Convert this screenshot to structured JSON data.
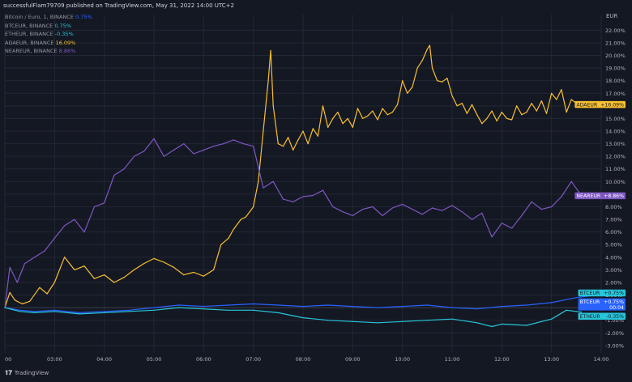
{
  "header": {
    "publisher": "successfulFlam79709 published on TradingView.com, May 31, 2022 14:00 UTC+2"
  },
  "legend": [
    {
      "name": "Bitcoin / Euro, 1, BINANCE",
      "value": "0.75%",
      "color": "#2962ff"
    },
    {
      "name": "BTCEUR, BINANCE",
      "value": "0.75%",
      "color": "#26c6da"
    },
    {
      "name": "ETHEUR, BINANCE",
      "value": "-0.35%",
      "color": "#26c6da"
    },
    {
      "name": "ADAEUR, BINANCE",
      "value": "16.09%",
      "color": "#f9c02e"
    },
    {
      "name": "NEAREUR, BINANCE",
      "value": "8.86%",
      "color": "#7e57c2"
    }
  ],
  "currency": "EUR",
  "branding": "TradingView",
  "colors": {
    "background": "#141823",
    "grid": "#222736",
    "axis_text": "#b2b5be",
    "ada": "#f9c02e",
    "near": "#7e57c2",
    "btc": "#2962ff",
    "eth": "#26c6da"
  },
  "chart_data": {
    "type": "line",
    "title": "",
    "xlabel": "",
    "ylabel": "",
    "x_ticks": [
      "00",
      "03:00",
      "04:00",
      "05:00",
      "06:00",
      "07:00",
      "08:00",
      "09:00",
      "10:00",
      "11:00",
      "12:00",
      "13:00",
      "14:00"
    ],
    "y_ticks": [
      "-3.00%",
      "-2.00%",
      "-1.00%",
      "0.00%",
      "1.00%",
      "2.00%",
      "3.00%",
      "4.00%",
      "5.00%",
      "6.00%",
      "7.00%",
      "8.00%",
      "9.00%",
      "10.00%",
      "11.00%",
      "12.00%",
      "13.00%",
      "14.00%",
      "15.00%",
      "16.00%",
      "17.00%",
      "18.00%",
      "19.00%",
      "20.00%",
      "21.00%",
      "22.00%"
    ],
    "ylim": [
      -3.2,
      22.6
    ],
    "xlim": [
      2.0,
      14.0
    ],
    "grid": true,
    "log_scale": false,
    "series": [
      {
        "name": "ADAEUR",
        "color": "#f9c02e",
        "x": [
          2.0,
          2.1,
          2.2,
          2.35,
          2.5,
          2.7,
          2.85,
          3.0,
          3.2,
          3.4,
          3.6,
          3.8,
          4.0,
          4.2,
          4.4,
          4.6,
          4.8,
          5.0,
          5.2,
          5.4,
          5.6,
          5.8,
          6.0,
          6.2,
          6.35,
          6.5,
          6.6,
          6.75,
          6.85,
          7.0,
          7.1,
          7.2,
          7.3,
          7.35,
          7.4,
          7.5,
          7.6,
          7.7,
          7.8,
          7.9,
          8.0,
          8.1,
          8.2,
          8.3,
          8.4,
          8.5,
          8.6,
          8.7,
          8.8,
          8.9,
          9.0,
          9.1,
          9.2,
          9.3,
          9.4,
          9.5,
          9.6,
          9.7,
          9.8,
          9.9,
          10.0,
          10.1,
          10.2,
          10.3,
          10.4,
          10.5,
          10.55,
          10.6,
          10.7,
          10.8,
          10.9,
          11.0,
          11.1,
          11.2,
          11.3,
          11.4,
          11.5,
          11.6,
          11.7,
          11.8,
          11.9,
          12.0,
          12.1,
          12.2,
          12.3,
          12.4,
          12.5,
          12.6,
          12.7,
          12.8,
          12.9,
          13.0,
          13.1,
          13.2,
          13.3,
          13.4,
          13.5,
          13.6
        ],
        "values": [
          0.0,
          1.2,
          0.6,
          0.3,
          0.5,
          1.6,
          1.1,
          2.0,
          4.0,
          3.0,
          3.3,
          2.3,
          2.6,
          2.0,
          2.4,
          3.0,
          3.5,
          3.9,
          3.6,
          3.2,
          2.6,
          2.8,
          2.5,
          3.0,
          5.0,
          5.5,
          6.2,
          7.0,
          7.2,
          8.0,
          10.0,
          14.0,
          18.0,
          20.4,
          16.0,
          13.0,
          12.8,
          13.5,
          12.5,
          13.3,
          14.0,
          13.0,
          14.2,
          13.6,
          16.0,
          14.3,
          15.0,
          15.5,
          14.6,
          15.0,
          14.3,
          15.8,
          15.0,
          15.2,
          15.6,
          14.9,
          15.8,
          15.3,
          15.5,
          16.1,
          18.0,
          17.0,
          17.5,
          19.0,
          19.6,
          20.5,
          20.8,
          19.0,
          18.0,
          17.9,
          18.2,
          16.8,
          16.0,
          16.2,
          15.4,
          16.1,
          15.3,
          14.6,
          15.0,
          15.6,
          14.8,
          15.5,
          15.0,
          14.9,
          16.0,
          15.3,
          15.5,
          16.2,
          15.6,
          16.4,
          15.4,
          17.0,
          16.5,
          17.3,
          15.5,
          16.5,
          16.2,
          16.1
        ]
      },
      {
        "name": "NEAREUR",
        "color": "#7e57c2",
        "x": [
          2.0,
          2.1,
          2.25,
          2.4,
          2.6,
          2.8,
          3.0,
          3.2,
          3.4,
          3.6,
          3.8,
          4.0,
          4.2,
          4.4,
          4.6,
          4.8,
          5.0,
          5.2,
          5.4,
          5.6,
          5.8,
          6.0,
          6.2,
          6.4,
          6.6,
          6.8,
          7.0,
          7.2,
          7.4,
          7.6,
          7.8,
          8.0,
          8.2,
          8.4,
          8.6,
          8.8,
          9.0,
          9.2,
          9.4,
          9.6,
          9.8,
          10.0,
          10.2,
          10.4,
          10.6,
          10.8,
          11.0,
          11.2,
          11.4,
          11.6,
          11.8,
          12.0,
          12.2,
          12.4,
          12.6,
          12.8,
          13.0,
          13.2,
          13.4,
          13.6
        ],
        "values": [
          0.0,
          3.2,
          2.0,
          3.5,
          4.0,
          4.5,
          5.5,
          6.5,
          7.0,
          6.0,
          8.0,
          8.3,
          10.5,
          11.0,
          12.0,
          12.4,
          13.4,
          12.0,
          12.5,
          13.0,
          12.2,
          12.5,
          12.8,
          13.0,
          13.3,
          13.0,
          12.8,
          9.5,
          10.0,
          8.6,
          8.4,
          8.8,
          8.9,
          9.3,
          8.0,
          7.6,
          7.3,
          7.8,
          8.0,
          7.3,
          7.9,
          8.2,
          7.8,
          7.4,
          7.9,
          7.7,
          8.1,
          7.6,
          7.0,
          7.5,
          5.6,
          6.7,
          6.3,
          7.3,
          8.4,
          7.8,
          8.0,
          8.8,
          10.0,
          8.9
        ]
      },
      {
        "name": "BTCEUR",
        "color": "#2962ff",
        "x": [
          2.0,
          2.3,
          2.6,
          3.0,
          3.5,
          4.0,
          4.5,
          5.0,
          5.5,
          6.0,
          6.5,
          7.0,
          7.5,
          8.0,
          8.5,
          9.0,
          9.5,
          10.0,
          10.5,
          11.0,
          11.5,
          12.0,
          12.5,
          13.0,
          13.5,
          13.9
        ],
        "values": [
          0.0,
          -0.2,
          -0.3,
          -0.2,
          -0.4,
          -0.3,
          -0.2,
          0.0,
          0.2,
          0.1,
          0.2,
          0.3,
          0.2,
          0.1,
          0.2,
          0.1,
          0.0,
          0.1,
          0.2,
          0.0,
          -0.1,
          0.1,
          0.2,
          0.4,
          0.8,
          1.0
        ]
      },
      {
        "name": "ETHEUR",
        "color": "#26c6da",
        "x": [
          2.0,
          2.3,
          2.6,
          3.0,
          3.5,
          4.0,
          4.5,
          5.0,
          5.5,
          6.0,
          6.5,
          7.0,
          7.5,
          8.0,
          8.5,
          9.0,
          9.5,
          10.0,
          10.5,
          11.0,
          11.5,
          11.8,
          12.0,
          12.5,
          13.0,
          13.3,
          13.6
        ],
        "values": [
          0.0,
          -0.3,
          -0.4,
          -0.3,
          -0.5,
          -0.4,
          -0.3,
          -0.2,
          0.0,
          -0.1,
          -0.2,
          -0.2,
          -0.4,
          -0.8,
          -1.0,
          -1.1,
          -1.2,
          -1.1,
          -1.0,
          -0.9,
          -1.2,
          -1.5,
          -1.3,
          -1.4,
          -0.9,
          -0.2,
          -0.35
        ]
      }
    ],
    "price_labels": [
      {
        "name": "ADAEUR",
        "value": "+16.09%",
        "y": 16.09,
        "bg": "#f9c02e",
        "fg": "#141823"
      },
      {
        "name": "NEAREUR",
        "value": "+8.86%",
        "y": 8.86,
        "bg": "#7e57c2",
        "fg": "#ffffff"
      },
      {
        "name": "BTCEUR",
        "value": "+0.75%",
        "y": 1.15,
        "bg": "#26c6da",
        "fg": "#141823"
      },
      {
        "name": "BTCEUR",
        "value": "+0.75%",
        "y": 0.45,
        "bg": "#2962ff",
        "fg": "#ffffff",
        "extra": "00:04"
      },
      {
        "name": "ETHEUR",
        "value": "-0.35%",
        "y": -0.7,
        "bg": "#26c6da",
        "fg": "#141823"
      }
    ]
  }
}
